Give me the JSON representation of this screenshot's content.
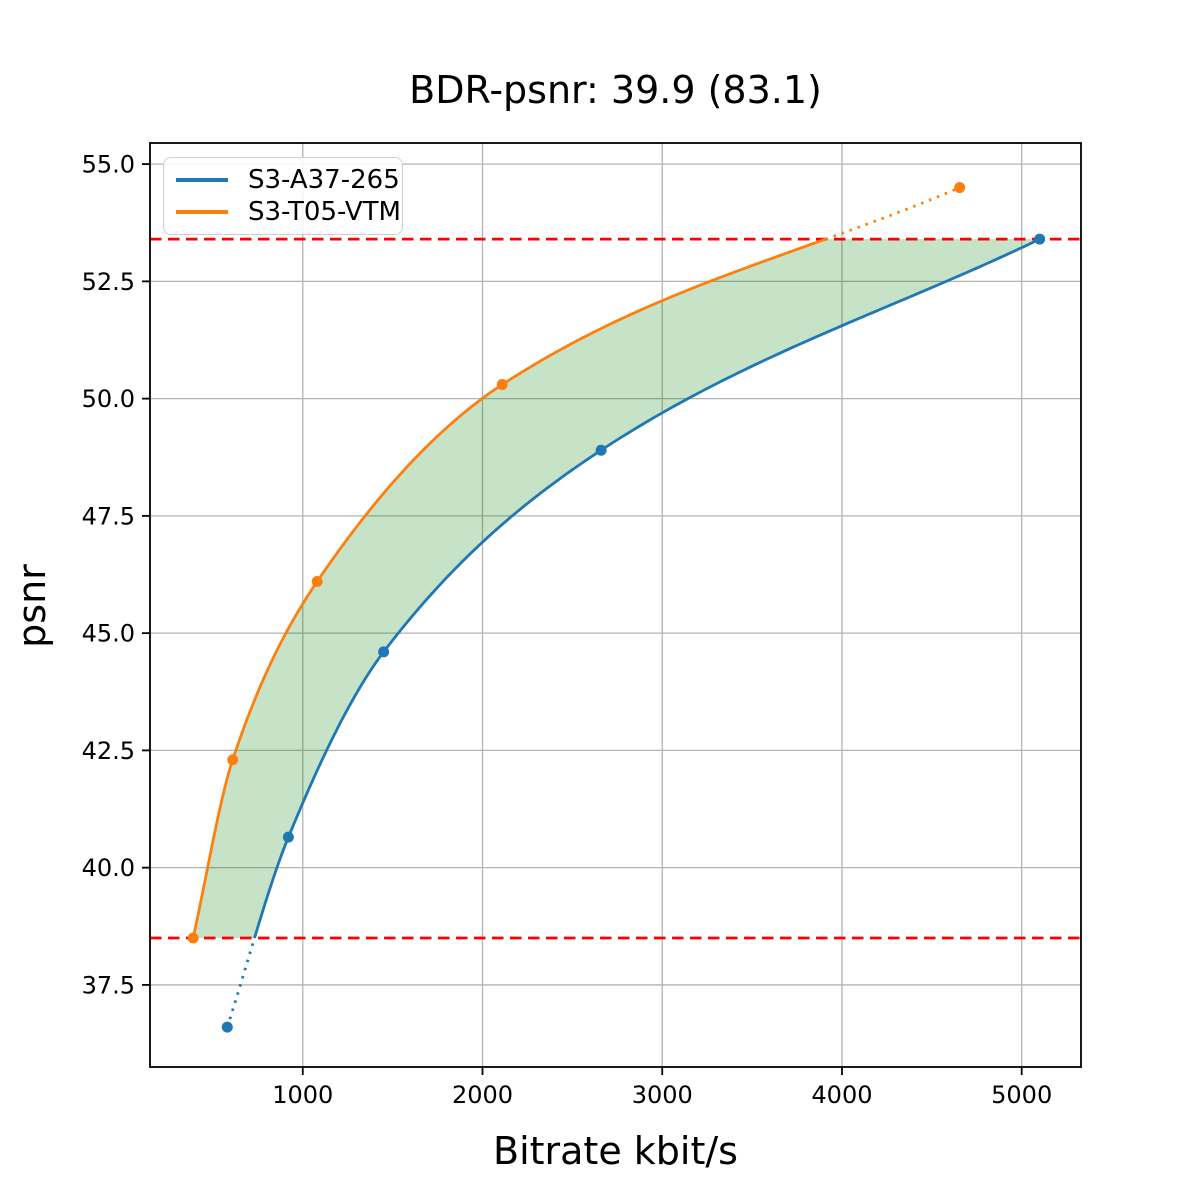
{
  "chart_data": {
    "type": "line",
    "title": "BDR-psnr: 39.9 (83.1)",
    "xlabel": "Bitrate kbit/s",
    "ylabel": "psnr",
    "xlim": [
      150,
      5330
    ],
    "ylim": [
      35.75,
      55.45
    ],
    "xticks": [
      1000,
      2000,
      3000,
      4000,
      5000
    ],
    "yticks": [
      37.5,
      40.0,
      42.5,
      45.0,
      47.5,
      50.0,
      52.5,
      55.0
    ],
    "grid": true,
    "grid_color": "#b3b3b3",
    "legend_position": "upper-left",
    "series": [
      {
        "name": "S3-A37-265",
        "color": "#1f77b4",
        "x": [
          580,
          920,
          1450,
          2660,
          5100
        ],
        "y": [
          36.6,
          40.65,
          44.6,
          48.9,
          53.4
        ]
      },
      {
        "name": "S3-T05-VTM",
        "color": "#ff7f0e",
        "x": [
          390,
          610,
          1080,
          2110,
          4655
        ],
        "y": [
          38.5,
          42.3,
          46.1,
          50.3,
          54.5
        ]
      }
    ],
    "reference_lines": {
      "values": [
        53.4,
        38.5
      ],
      "color": "#ff0000",
      "style": "dashed"
    },
    "overlap_band": {
      "lower": 38.5,
      "upper": 53.4,
      "fill_color": "#008000",
      "fill_opacity": 0.22
    },
    "dotted_outside_band": true
  }
}
